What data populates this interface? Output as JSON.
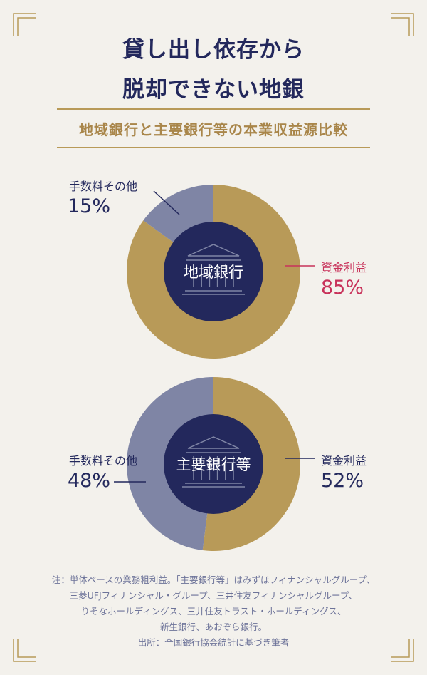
{
  "header": {
    "title_line1": "貸し出し依存から",
    "title_line2": "脱却できない地銀",
    "subtitle": "地域銀行と主要銀行等の本業収益源比較"
  },
  "colors": {
    "background": "#f3f1ec",
    "gold": "#b89a58",
    "slate": "#7f85a5",
    "navy": "#23285c",
    "highlight": "#c8325a"
  },
  "chart_data": [
    {
      "type": "pie",
      "center_label": "地域銀行",
      "slices": [
        {
          "label": "資金利益",
          "value": 85,
          "display": "85%"
        },
        {
          "label": "手数料その他",
          "value": 15,
          "display": "15%"
        }
      ]
    },
    {
      "type": "pie",
      "center_label": "主要銀行等",
      "slices": [
        {
          "label": "資金利益",
          "value": 52,
          "display": "52%"
        },
        {
          "label": "手数料その他",
          "value": 48,
          "display": "48%"
        }
      ]
    }
  ],
  "notes": {
    "line1": "注：単体ベースの業務粗利益。「主要銀行等」はみずほフィナンシャルグループ、",
    "line2": "三菱UFJフィナンシャル・グループ、三井住友フィナンシャルグループ、",
    "line3": "りそなホールディングス、三井住友トラスト・ホールディングス、",
    "line4": "新生銀行、あおぞら銀行。",
    "line5": "出所：全国銀行協会統計に基づき筆者"
  }
}
